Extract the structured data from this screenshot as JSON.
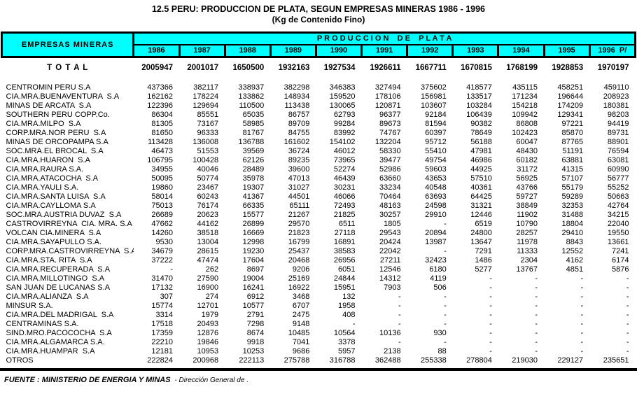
{
  "title": "12.5 PERU: PRODUCCION DE PLATA, SEGUN EMPRESAS MINERAS 1986 - 1996",
  "subtitle": "(Kg de Contenido Fino)",
  "colors": {
    "header_bg": "#00FFFF",
    "border": "#000000",
    "page_bg": "#FFFFFF"
  },
  "table": {
    "col_header_left": "EMPRESAS MINERAS",
    "group_header": "P R O D U C C I O N    D E    P L A T A",
    "years": [
      "1986",
      "1987",
      "1988",
      "1989",
      "1990",
      "1991",
      "1992",
      "1993",
      "1994",
      "1995",
      "1996  P/"
    ],
    "total_label": "T O T A L",
    "total_values": [
      "2005947",
      "2001017",
      "1650500",
      "1932163",
      "1927534",
      "1926611",
      "1667711",
      "1670815",
      "1768199",
      "1928853",
      "1970197"
    ],
    "rows": [
      {
        "name": "CENTROMIN PERU S.A",
        "values": [
          "437366",
          "382117",
          "338937",
          "382298",
          "346383",
          "327494",
          "375602",
          "418577",
          "435115",
          "458251",
          "459110"
        ]
      },
      {
        "name": "CIA.MRA.BUENAVENTURA  S.A",
        "values": [
          "162162",
          "178224",
          "133862",
          "148934",
          "159520",
          "178106",
          "156981",
          "133517",
          "171234",
          "196644",
          "208923"
        ]
      },
      {
        "name": "MINAS DE ARCATA  S.A",
        "values": [
          "122396",
          "129694",
          "110500",
          "113438",
          "130065",
          "120871",
          "103607",
          "103284",
          "154218",
          "174209",
          "180381"
        ]
      },
      {
        "name": "SOUTHERN PERU COPP.Co.",
        "values": [
          "86304",
          "85551",
          "65035",
          "86757",
          "62793",
          "96377",
          "92184",
          "106439",
          "109942",
          "129341",
          "98203"
        ]
      },
      {
        "name": "CIA.MRA.MILPO  S.A",
        "values": [
          "81305",
          "73167",
          "58985",
          "89709",
          "99284",
          "89673",
          "81594",
          "90382",
          "86808",
          "97221",
          "94419"
        ]
      },
      {
        "name": "CORP.MRA.NOR PERU  S.A",
        "values": [
          "81650",
          "96333",
          "81767",
          "84755",
          "83992",
          "74767",
          "60397",
          "78649",
          "102423",
          "85870",
          "89731"
        ]
      },
      {
        "name": "MINAS DE ORCOPAMPA S.A",
        "values": [
          "113428",
          "136008",
          "136788",
          "161602",
          "154102",
          "132204",
          "95712",
          "56188",
          "60047",
          "87765",
          "88901"
        ]
      },
      {
        "name": "SOC.MRA.EL BROCAL  S.A",
        "values": [
          "46473",
          "51553",
          "39569",
          "36724",
          "46012",
          "58330",
          "55410",
          "47981",
          "48430",
          "51191",
          "76594"
        ]
      },
      {
        "name": "CIA.MRA.HUARON  S.A",
        "values": [
          "106795",
          "100428",
          "62126",
          "89235",
          "73965",
          "39477",
          "49754",
          "46986",
          "60182",
          "63881",
          "63081"
        ]
      },
      {
        "name": "CIA.MRA.RAURA S.A.",
        "values": [
          "34955",
          "40046",
          "28489",
          "39600",
          "52274",
          "52986",
          "59603",
          "44925",
          "31172",
          "41315",
          "60990"
        ]
      },
      {
        "name": "CIA.MRA.ATACOCHA  S.A",
        "values": [
          "50095",
          "50774",
          "35978",
          "47013",
          "46439",
          "63660",
          "43653",
          "57510",
          "56925",
          "57107",
          "56777"
        ]
      },
      {
        "name": "CIA.MRA.YAULI S.A.",
        "values": [
          "19860",
          "23467",
          "19307",
          "31027",
          "30231",
          "33234",
          "40548",
          "40361",
          "43766",
          "55179",
          "55252"
        ]
      },
      {
        "name": "CIA.MRA.SANTA LUISA  S.A",
        "values": [
          "58014",
          "60243",
          "41367",
          "44501",
          "46066",
          "70464",
          "63693",
          "64425",
          "59727",
          "59289",
          "50663"
        ]
      },
      {
        "name": "CIA.MRA.CAYLLOMA S.A",
        "values": [
          "75013",
          "76174",
          "66335",
          "65111",
          "72493",
          "48163",
          "24598",
          "31321",
          "38849",
          "32353",
          "42764"
        ]
      },
      {
        "name": "SOC.MRA.AUSTRIA DUVAZ  S.A",
        "values": [
          "26689",
          "20623",
          "15577",
          "21267",
          "21825",
          "30257",
          "29910",
          "12446",
          "11902",
          "31488",
          "34215"
        ]
      },
      {
        "name": "CASTROVIRREYNA  CIA. MRA. S.A",
        "values": [
          "47662",
          "44162",
          "26899",
          "29570",
          "6511",
          "1805",
          "-",
          "6519",
          "10790",
          "18804",
          "22040"
        ]
      },
      {
        "name": "VOLCAN CIA.MINERA  S.A",
        "values": [
          "14260",
          "38518",
          "16669",
          "21823",
          "27118",
          "29543",
          "20894",
          "24800",
          "28257",
          "29410",
          "19550"
        ]
      },
      {
        "name": "CIA.MRA.SAYAPULLO S.A.",
        "values": [
          "9530",
          "13004",
          "12998",
          "16799",
          "16891",
          "20424",
          "13987",
          "13647",
          "11978",
          "8843",
          "13661"
        ]
      },
      {
        "name": "CORP.MRA.CASTROVIRREYNA  S.A",
        "values": [
          "34679",
          "28615",
          "19230",
          "25437",
          "38583",
          "22042",
          "-",
          "7291",
          "11333",
          "12552",
          "7241"
        ]
      },
      {
        "name": "CIA.MRA.STA. RITA  S.A",
        "values": [
          "37222",
          "47474",
          "17604",
          "20468",
          "26956",
          "27211",
          "32423",
          "1486",
          "2304",
          "4162",
          "6174"
        ]
      },
      {
        "name": "CIA.MRA.RECUPERADA  S.A",
        "values": [
          "-",
          "262",
          "8697",
          "9206",
          "6051",
          "12546",
          "6180",
          "5277",
          "13767",
          "4851",
          "5876"
        ]
      },
      {
        "name": "CIA.MRA.MILLOTINGO  S.A",
        "values": [
          "31470",
          "27590",
          "19004",
          "25169",
          "24844",
          "14312",
          "4119",
          "-",
          "-",
          "-",
          "-"
        ]
      },
      {
        "name": "SAN JUAN DE LUCANAS S.A",
        "values": [
          "17132",
          "16900",
          "16241",
          "16922",
          "15951",
          "7903",
          "506",
          "-",
          "-",
          "-",
          "-"
        ]
      },
      {
        "name": "CIA.MRA.ALIANZA  S.A",
        "values": [
          "307",
          "274",
          "6912",
          "3468",
          "132",
          "-",
          "-",
          "-",
          "-",
          "-",
          "-"
        ]
      },
      {
        "name": "MINSUR S.A.",
        "values": [
          "15774",
          "12701",
          "10577",
          "6707",
          "1958",
          "-",
          "-",
          "-",
          "-",
          "-",
          "-"
        ]
      },
      {
        "name": "CIA.MRA.DEL MADRIGAL  S.A",
        "values": [
          "3314",
          "1979",
          "2791",
          "2475",
          "408",
          "-",
          "-",
          "-",
          "-",
          "-",
          "-"
        ]
      },
      {
        "name": "CENTRAMINAS S.A.",
        "values": [
          "17518",
          "20493",
          "7298",
          "9148",
          "-",
          "-",
          "-",
          "-",
          "-",
          "-",
          "-"
        ]
      },
      {
        "name": "SIND.MRO.PACOCOCHA  S.A",
        "values": [
          "17359",
          "12876",
          "8674",
          "10485",
          "10564",
          "10136",
          "930",
          "-",
          "-",
          "-",
          "-"
        ]
      },
      {
        "name": "CIA.MRA.ALGAMARCA S.A.",
        "values": [
          "22210",
          "19846",
          "9918",
          "7041",
          "3378",
          "-",
          "-",
          "-",
          "-",
          "-",
          "-"
        ]
      },
      {
        "name": "CIA.MRA.HUAMPAR  S.A",
        "values": [
          "12181",
          "10953",
          "10253",
          "9686",
          "5957",
          "2138",
          "88",
          "-",
          "-",
          "-",
          "-"
        ]
      },
      {
        "name": "OTROS",
        "values": [
          "222824",
          "200968",
          "222113",
          "275788",
          "316788",
          "362488",
          "255338",
          "278804",
          "219030",
          "229127",
          "235651"
        ]
      }
    ]
  },
  "footer": {
    "source_main": "FUENTE : MINISTERIO DE ENERGIA Y MINAS ",
    "source_rest": " - Dirección General de ."
  }
}
